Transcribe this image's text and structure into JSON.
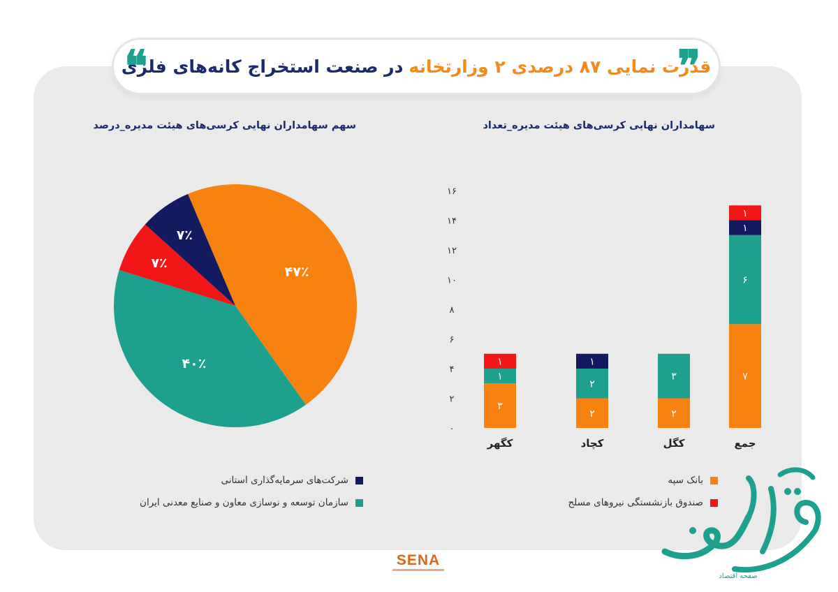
{
  "title": {
    "part1": "قدرت نمایی ۸۷ درصدی ۲ وزارتخانه",
    "part2": "در صنعت استخراج کانه‌های فلزی"
  },
  "brand": {
    "logo_text": "SENA",
    "watermark_text": "صفحه اقتصاد"
  },
  "colors": {
    "orange": "#f8820f",
    "teal": "#1ea08e",
    "navy": "#141a5f",
    "red": "#f31616",
    "title_blue": "#1b2a6b"
  },
  "chart_data": [
    {
      "type": "bar",
      "stacked": true,
      "title": "سهامداران نهایی کرسی‌های هیئت مدیره_تعداد",
      "categories": [
        "جمع",
        "کگل",
        "کچاد",
        "کگهر"
      ],
      "series": [
        {
          "name": "بانک سپه",
          "color": "#f8820f",
          "values": [
            7,
            2,
            2,
            3
          ],
          "labels": [
            "۷",
            "۲",
            "۲",
            "۳"
          ]
        },
        {
          "name": "",
          "color": "#1ea08e",
          "values": [
            6,
            3,
            2,
            1
          ],
          "labels": [
            "۶",
            "۳",
            "۲",
            "۱"
          ]
        },
        {
          "name": "",
          "color": "#141a5f",
          "values": [
            1,
            0,
            1,
            0
          ],
          "labels": [
            "۱",
            "",
            "۱",
            ""
          ]
        },
        {
          "name": "صندوق بازنشستگی نیروهای مسلح",
          "color": "#f31616",
          "values": [
            1,
            0,
            0,
            1
          ],
          "labels": [
            "۱",
            "",
            "",
            "۱"
          ]
        }
      ],
      "ylim": [
        0,
        16
      ],
      "yticks": [
        0,
        2,
        4,
        6,
        8,
        10,
        12,
        14,
        16
      ],
      "ytick_labels": [
        "۰",
        "۲",
        "۴",
        "۶",
        "۸",
        "۱۰",
        "۱۲",
        "۱۴",
        "۱۶"
      ],
      "grid": false,
      "legend_position": "bottom-right"
    },
    {
      "type": "pie",
      "title": "سهم سهامداران نهایی کرسی‌های هیئت مدیره_درصد",
      "slices": [
        {
          "name": "",
          "value": 47,
          "label": "۴۷٪",
          "color": "#f8820f"
        },
        {
          "name": "سازمان توسعه و نوسازی معاون و صنایع معدنی ایران",
          "value": 40,
          "label": "۴۰٪",
          "color": "#1ea08e"
        },
        {
          "name": "",
          "value": 7,
          "label": "۷٪",
          "color": "#f31616"
        },
        {
          "name": "شرکت‌های سرمایه‌گذاری استانی",
          "value": 7,
          "label": "۷٪",
          "color": "#141a5f"
        }
      ],
      "legend_position": "bottom"
    }
  ],
  "legends": {
    "left": [
      {
        "label": "شرکت‌های سرمایه‌گذاری استانی",
        "color": "#141a5f"
      },
      {
        "label": "سازمان توسعه و نوسازی معاون و صنایع معدنی ایران",
        "color": "#1ea08e"
      }
    ],
    "right": [
      {
        "label": "بانک سپه",
        "color": "#f8820f"
      },
      {
        "label": "صندوق بازنشستگی نیروهای مسلح",
        "color": "#f31616"
      }
    ]
  }
}
